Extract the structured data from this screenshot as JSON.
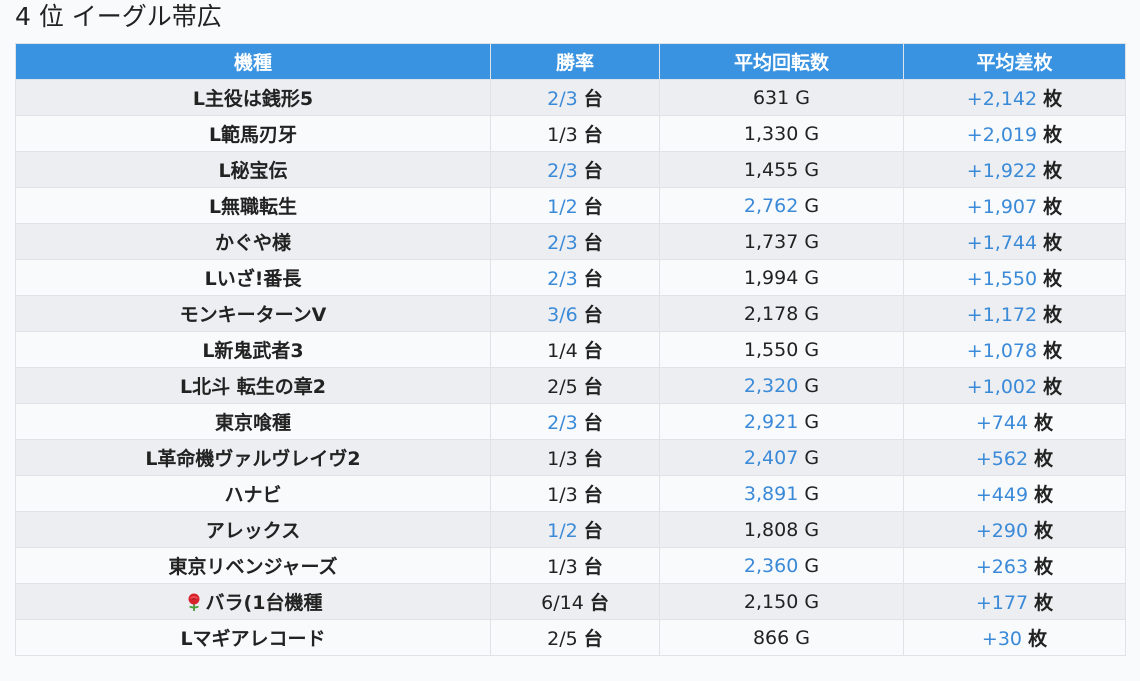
{
  "page_title": "4 位 イーグル帯広",
  "colors": {
    "header_bg": "#3a93e0",
    "highlight": "#3a8ad8",
    "row_odd": "#eceef1",
    "row_even": "#f9fafc"
  },
  "table": {
    "headers": [
      "機種",
      "勝率",
      "平均回転数",
      "平均差枚"
    ],
    "rate_unit": "台",
    "spins_unit": "G",
    "diff_unit": "枚",
    "rows": [
      {
        "name": "L主役は銭形5",
        "rate": "2/3",
        "rate_hl": true,
        "spins": "631",
        "spins_hl": false,
        "diff": "+2,142",
        "diff_hl": true
      },
      {
        "name": "L範馬刃牙",
        "rate": "1/3",
        "rate_hl": false,
        "spins": "1,330",
        "spins_hl": false,
        "diff": "+2,019",
        "diff_hl": true
      },
      {
        "name": "L秘宝伝",
        "rate": "2/3",
        "rate_hl": true,
        "spins": "1,455",
        "spins_hl": false,
        "diff": "+1,922",
        "diff_hl": true
      },
      {
        "name": "L無職転生",
        "rate": "1/2",
        "rate_hl": true,
        "spins": "2,762",
        "spins_hl": true,
        "diff": "+1,907",
        "diff_hl": true
      },
      {
        "name": "かぐや様",
        "rate": "2/3",
        "rate_hl": true,
        "spins": "1,737",
        "spins_hl": false,
        "diff": "+1,744",
        "diff_hl": true
      },
      {
        "name": "Lいざ!番長",
        "rate": "2/3",
        "rate_hl": true,
        "spins": "1,994",
        "spins_hl": false,
        "diff": "+1,550",
        "diff_hl": true
      },
      {
        "name": "モンキーターンV",
        "rate": "3/6",
        "rate_hl": true,
        "spins": "2,178",
        "spins_hl": false,
        "diff": "+1,172",
        "diff_hl": true
      },
      {
        "name": "L新鬼武者3",
        "rate": "1/4",
        "rate_hl": false,
        "spins": "1,550",
        "spins_hl": false,
        "diff": "+1,078",
        "diff_hl": true
      },
      {
        "name": "L北斗 転生の章2",
        "rate": "2/5",
        "rate_hl": false,
        "spins": "2,320",
        "spins_hl": true,
        "diff": "+1,002",
        "diff_hl": true
      },
      {
        "name": "東京喰種",
        "rate": "2/3",
        "rate_hl": true,
        "spins": "2,921",
        "spins_hl": true,
        "diff": "+744",
        "diff_hl": true
      },
      {
        "name": "L革命機ヴァルヴレイヴ2",
        "rate": "1/3",
        "rate_hl": false,
        "spins": "2,407",
        "spins_hl": true,
        "diff": "+562",
        "diff_hl": true
      },
      {
        "name": "ハナビ",
        "rate": "1/3",
        "rate_hl": false,
        "spins": "3,891",
        "spins_hl": true,
        "diff": "+449",
        "diff_hl": true
      },
      {
        "name": "アレックス",
        "rate": "1/2",
        "rate_hl": true,
        "spins": "1,808",
        "spins_hl": false,
        "diff": "+290",
        "diff_hl": true
      },
      {
        "name": "東京リベンジャーズ",
        "rate": "1/3",
        "rate_hl": false,
        "spins": "2,360",
        "spins_hl": true,
        "diff": "+263",
        "diff_hl": true
      },
      {
        "name": "バラ(1台機種",
        "icon": "rose-icon",
        "rate": "6/14",
        "rate_hl": false,
        "spins": "2,150",
        "spins_hl": false,
        "diff": "+177",
        "diff_hl": true
      },
      {
        "name": "Lマギアレコード",
        "rate": "2/5",
        "rate_hl": false,
        "spins": "866",
        "spins_hl": false,
        "diff": "+30",
        "diff_hl": true
      }
    ]
  }
}
